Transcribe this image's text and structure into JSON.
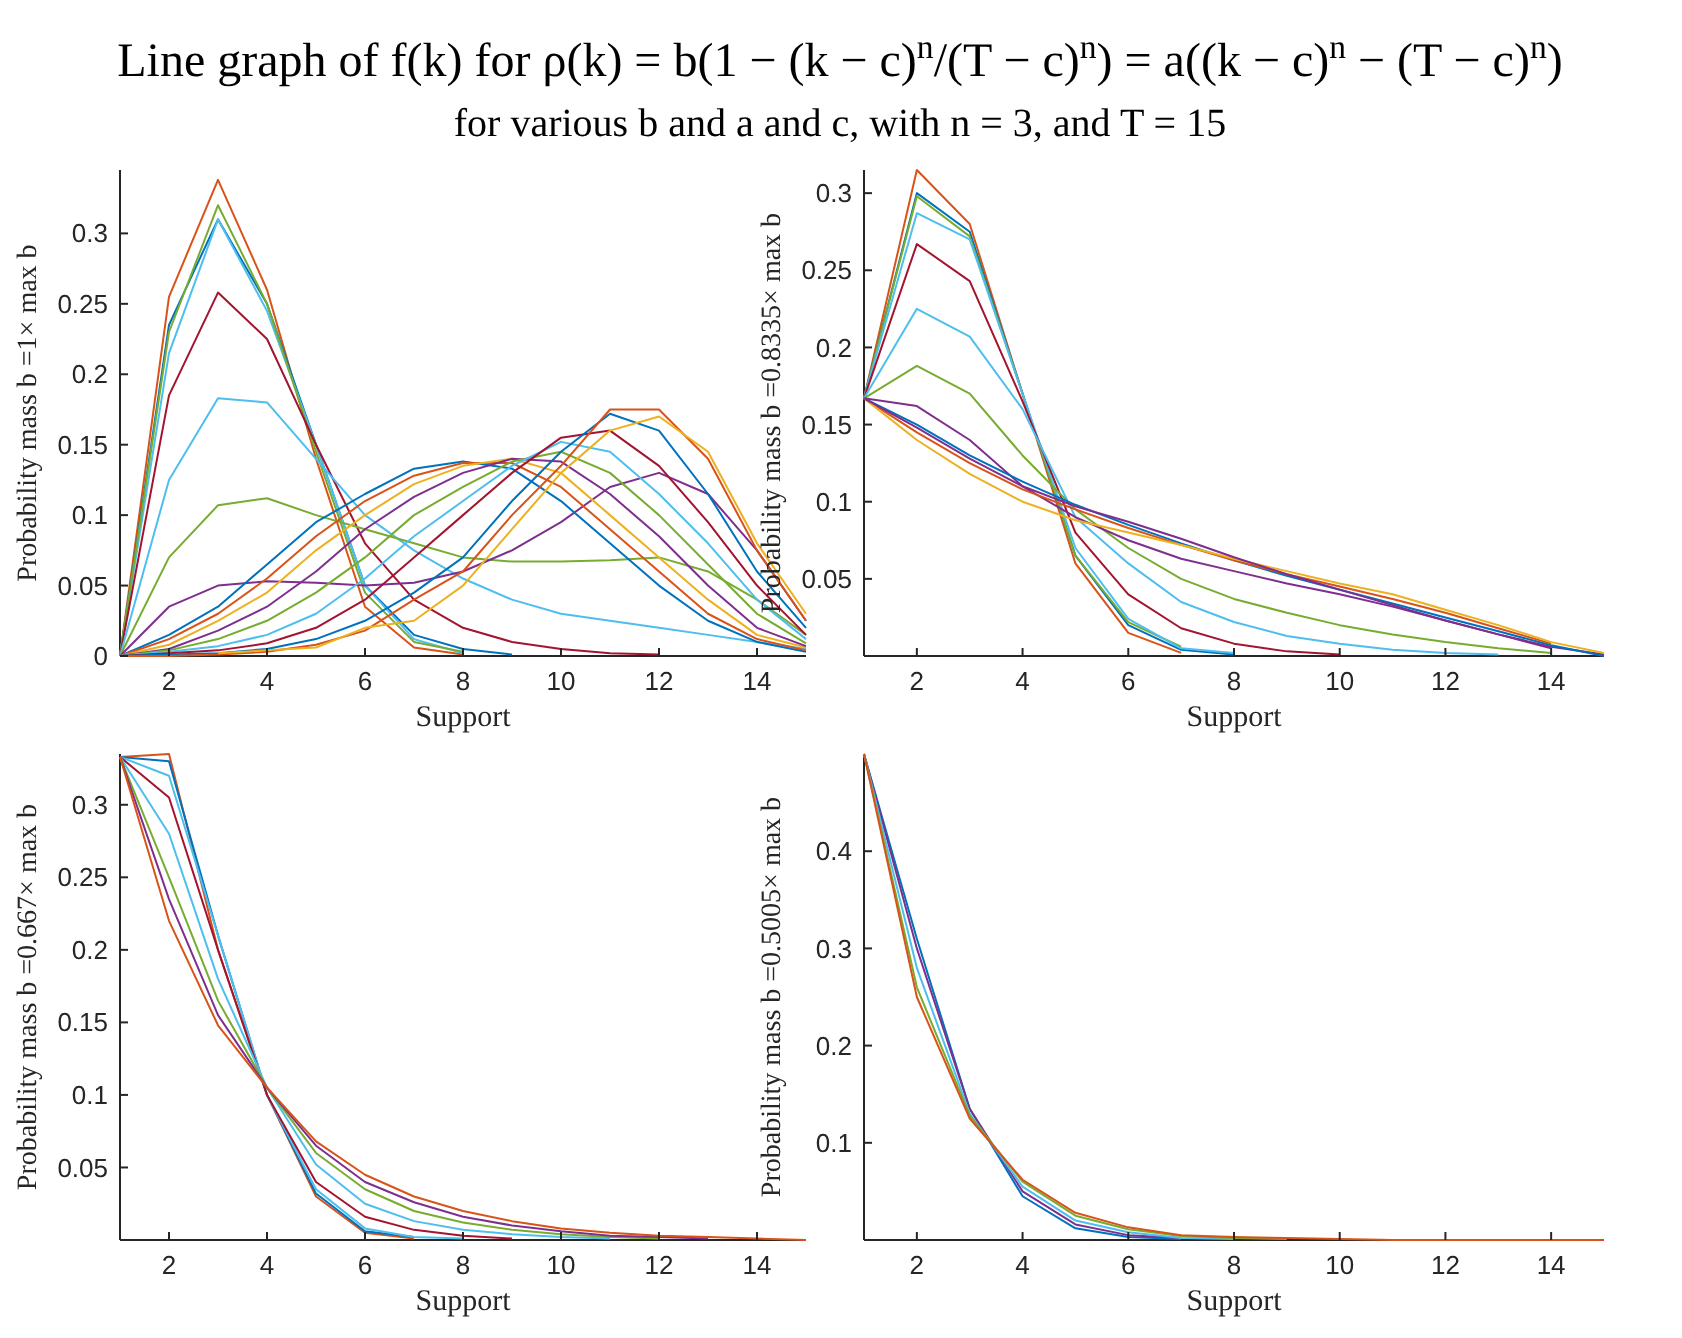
{
  "chart_data": [
    {
      "type": "line",
      "title": "Line graph of f(k) for ρ(k) = b(1 − (k − c)$^{n}$/(T − c)$^{n}$) = a((k − c)$^{n}$ − (T − c)$^{n}$)",
      "subtitle": "for various b and a and c, with n = 3, and T = 15",
      "xlabel": "Support",
      "ylabel": "Probability mass b =1× max b",
      "x": [
        1,
        2,
        3,
        4,
        5,
        6,
        7,
        8,
        9,
        10,
        11,
        12,
        13,
        14,
        15
      ],
      "xlim": [
        1,
        15
      ],
      "xticks": [
        2,
        4,
        6,
        8,
        10,
        12,
        14
      ],
      "ylim": [
        0,
        0.345
      ],
      "yticks": [
        0,
        0.05,
        0.1,
        0.15,
        0.2,
        0.25,
        0.3
      ],
      "series": [
        {
          "color": "#d95319",
          "values": [
            0,
            0.255,
            0.338,
            0.26,
            0.14,
            0.035,
            0.006,
            0.001,
            null,
            null,
            null,
            null,
            null,
            null,
            null
          ]
        },
        {
          "color": "#0072bd",
          "values": [
            0,
            0.235,
            0.31,
            0.25,
            0.15,
            0.05,
            0.015,
            0.005,
            0.001,
            null,
            null,
            null,
            null,
            null,
            null
          ]
        },
        {
          "color": "#4dbeee",
          "values": [
            0,
            0.215,
            0.31,
            0.245,
            0.15,
            0.05,
            0.012,
            0.002,
            null,
            null,
            null,
            null,
            null,
            null,
            null
          ]
        },
        {
          "color": "#77ac30",
          "values": [
            0,
            0.23,
            0.32,
            0.25,
            0.145,
            0.045,
            0.01,
            0.003,
            null,
            null,
            null,
            null,
            null,
            null,
            null
          ]
        },
        {
          "color": "#a2142f",
          "values": [
            0,
            0.185,
            0.258,
            0.225,
            0.15,
            0.08,
            0.04,
            0.02,
            0.01,
            0.005,
            0.002,
            0.001,
            null,
            null,
            null
          ]
        },
        {
          "color": "#4dbeee",
          "values": [
            0,
            0.125,
            0.183,
            0.18,
            0.14,
            0.1,
            0.075,
            0.055,
            0.04,
            0.03,
            0.025,
            0.02,
            0.015,
            0.01,
            0.005
          ]
        },
        {
          "color": "#77ac30",
          "values": [
            0,
            0.07,
            0.107,
            0.112,
            0.1,
            0.09,
            0.08,
            0.07,
            0.067,
            0.067,
            0.068,
            0.07,
            0.06,
            0.04,
            0.015
          ]
        },
        {
          "color": "#7e2f8e",
          "values": [
            0,
            0.035,
            0.05,
            0.053,
            0.052,
            0.05,
            0.052,
            0.06,
            0.075,
            0.095,
            0.12,
            0.13,
            0.115,
            0.075,
            0.025
          ]
        },
        {
          "color": "#0072bd",
          "values": [
            0,
            0.015,
            0.035,
            0.065,
            0.095,
            0.115,
            0.133,
            0.138,
            0.133,
            0.11,
            0.08,
            0.05,
            0.025,
            0.01,
            0.003
          ]
        },
        {
          "color": "#d95319",
          "values": [
            0,
            0.012,
            0.03,
            0.055,
            0.085,
            0.11,
            0.128,
            0.137,
            0.137,
            0.12,
            0.09,
            0.06,
            0.03,
            0.012,
            0.004
          ]
        },
        {
          "color": "#edb120",
          "values": [
            0,
            0.008,
            0.025,
            0.045,
            0.075,
            0.1,
            0.122,
            0.135,
            0.14,
            0.13,
            0.1,
            0.07,
            0.04,
            0.015,
            0.006
          ]
        },
        {
          "color": "#7e2f8e",
          "values": [
            0,
            0.005,
            0.018,
            0.035,
            0.06,
            0.09,
            0.113,
            0.13,
            0.14,
            0.138,
            0.115,
            0.085,
            0.05,
            0.02,
            0.007
          ]
        },
        {
          "color": "#77ac30",
          "values": [
            0,
            0.004,
            0.012,
            0.025,
            0.045,
            0.07,
            0.1,
            0.12,
            0.138,
            0.145,
            0.13,
            0.1,
            0.065,
            0.03,
            0.009
          ]
        },
        {
          "color": "#4dbeee",
          "values": [
            0,
            0.003,
            0.007,
            0.015,
            0.03,
            0.055,
            0.085,
            0.11,
            0.135,
            0.152,
            0.145,
            0.115,
            0.08,
            0.04,
            0.012
          ]
        },
        {
          "color": "#a2142f",
          "values": [
            0,
            0.002,
            0.004,
            0.009,
            0.02,
            0.04,
            0.07,
            0.1,
            0.13,
            0.155,
            0.16,
            0.135,
            0.095,
            0.05,
            0.015
          ]
        },
        {
          "color": "#0072bd",
          "values": [
            0,
            0.001,
            0.002,
            0.005,
            0.012,
            0.025,
            0.045,
            0.07,
            0.11,
            0.145,
            0.172,
            0.16,
            0.115,
            0.06,
            0.02
          ]
        },
        {
          "color": "#d95319",
          "values": [
            0,
            0,
            0.001,
            0.003,
            0.008,
            0.018,
            0.04,
            0.06,
            0.1,
            0.135,
            0.175,
            0.175,
            0.14,
            0.075,
            0.025
          ]
        },
        {
          "color": "#edb120",
          "values": [
            null,
            null,
            0.002,
            0.004,
            0.006,
            0.02,
            0.025,
            0.05,
            0.09,
            0.13,
            0.16,
            0.17,
            0.145,
            0.08,
            0.03
          ]
        }
      ]
    },
    {
      "type": "line",
      "xlabel": "Support",
      "ylabel": "Probability mass b =0.8335× max b",
      "x": [
        1,
        2,
        3,
        4,
        5,
        6,
        7,
        8,
        9,
        10,
        11,
        12,
        13,
        14,
        15
      ],
      "xlim": [
        1,
        15
      ],
      "xticks": [
        2,
        4,
        6,
        8,
        10,
        12,
        14
      ],
      "ylim": [
        0,
        0.315
      ],
      "yticks": [
        0.05,
        0.1,
        0.15,
        0.2,
        0.25,
        0.3
      ],
      "series": [
        {
          "color": "#d95319",
          "values": [
            0.167,
            0.315,
            0.28,
            0.17,
            0.06,
            0.015,
            0.002,
            null,
            null,
            null,
            null,
            null,
            null,
            null,
            null
          ]
        },
        {
          "color": "#0072bd",
          "values": [
            0.167,
            0.3,
            0.275,
            0.17,
            0.065,
            0.02,
            0.004,
            0.001,
            null,
            null,
            null,
            null,
            null,
            null,
            null
          ]
        },
        {
          "color": "#77ac30",
          "values": [
            0.167,
            0.298,
            0.272,
            0.17,
            0.065,
            0.022,
            0.006,
            null,
            null,
            null,
            null,
            null,
            null,
            null,
            null
          ]
        },
        {
          "color": "#4dbeee",
          "values": [
            0.167,
            0.287,
            0.27,
            0.17,
            0.07,
            0.024,
            0.005,
            0.002,
            null,
            null,
            null,
            null,
            null,
            null,
            null
          ]
        },
        {
          "color": "#a2142f",
          "values": [
            0.167,
            0.267,
            0.243,
            0.165,
            0.08,
            0.04,
            0.018,
            0.008,
            0.003,
            0.001,
            null,
            null,
            null,
            null,
            null
          ]
        },
        {
          "color": "#4dbeee",
          "values": [
            0.167,
            0.225,
            0.207,
            0.16,
            0.09,
            0.06,
            0.035,
            0.022,
            0.013,
            0.008,
            0.004,
            0.002,
            0.001,
            null,
            null
          ]
        },
        {
          "color": "#77ac30",
          "values": [
            0.167,
            0.188,
            0.17,
            0.13,
            0.095,
            0.07,
            0.05,
            0.037,
            0.028,
            0.02,
            0.014,
            0.009,
            0.005,
            0.002,
            null
          ]
        },
        {
          "color": "#7e2f8e",
          "values": [
            0.167,
            0.162,
            0.14,
            0.11,
            0.09,
            0.075,
            0.063,
            0.055,
            0.047,
            0.04,
            0.032,
            0.023,
            0.014,
            0.006,
            0.001
          ]
        },
        {
          "color": "#0072bd",
          "values": [
            0.167,
            0.15,
            0.13,
            0.113,
            0.098,
            0.085,
            0.073,
            0.062,
            0.052,
            0.043,
            0.034,
            0.025,
            0.016,
            0.007,
            0
          ]
        },
        {
          "color": "#d95319",
          "values": [
            0.167,
            0.145,
            0.125,
            0.108,
            0.095,
            0.083,
            0.072,
            0.062,
            0.053,
            0.045,
            0.037,
            0.028,
            0.018,
            0.008,
            null
          ]
        },
        {
          "color": "#edb120",
          "values": [
            0.167,
            0.14,
            0.118,
            0.1,
            0.088,
            0.08,
            0.072,
            0.063,
            0.055,
            0.047,
            0.04,
            0.03,
            0.02,
            0.009,
            0.002
          ]
        },
        {
          "color": "#7e2f8e",
          "values": [
            0.167,
            0.148,
            0.128,
            0.11,
            0.097,
            0.087,
            0.076,
            0.064,
            0.053,
            0.043,
            0.033,
            0.023,
            0.014,
            0.005,
            null
          ]
        }
      ]
    },
    {
      "type": "line",
      "xlabel": "Support",
      "ylabel": "Probability mass b =0.667× max b",
      "x": [
        1,
        2,
        3,
        4,
        5,
        6,
        7,
        8,
        9,
        10,
        11,
        12,
        13,
        14,
        15
      ],
      "xlim": [
        1,
        15
      ],
      "xticks": [
        2,
        4,
        6,
        8,
        10,
        12,
        14
      ],
      "ylim": [
        0,
        0.335
      ],
      "yticks": [
        0.05,
        0.1,
        0.15,
        0.2,
        0.25,
        0.3
      ],
      "series": [
        {
          "color": "#d95319",
          "values": [
            0.333,
            0.335,
            0.2,
            0.1,
            0.03,
            0.005,
            0.001,
            null,
            null,
            null,
            null,
            null,
            null,
            null,
            null
          ]
        },
        {
          "color": "#0072bd",
          "values": [
            0.333,
            0.33,
            0.21,
            0.1,
            0.032,
            0.006,
            0.002,
            null,
            null,
            null,
            null,
            null,
            null,
            null,
            null
          ]
        },
        {
          "color": "#4dbeee",
          "values": [
            0.333,
            0.32,
            0.21,
            0.1,
            0.035,
            0.008,
            0.002,
            0.001,
            null,
            null,
            null,
            null,
            null,
            null,
            null
          ]
        },
        {
          "color": "#a2142f",
          "values": [
            0.333,
            0.305,
            0.2,
            0.1,
            0.04,
            0.016,
            0.007,
            0.003,
            0.001,
            null,
            null,
            null,
            null,
            null,
            null
          ]
        },
        {
          "color": "#4dbeee",
          "values": [
            0.333,
            0.28,
            0.18,
            0.105,
            0.052,
            0.025,
            0.013,
            0.007,
            0.004,
            0.002,
            0.001,
            null,
            null,
            null,
            null
          ]
        },
        {
          "color": "#77ac30",
          "values": [
            0.333,
            0.25,
            0.165,
            0.105,
            0.06,
            0.035,
            0.02,
            0.012,
            0.007,
            0.004,
            0.002,
            0.001,
            null,
            null,
            null
          ]
        },
        {
          "color": "#7e2f8e",
          "values": [
            0.333,
            0.235,
            0.155,
            0.105,
            0.065,
            0.04,
            0.026,
            0.016,
            0.01,
            0.006,
            0.003,
            0.002,
            0.001,
            null,
            null
          ]
        },
        {
          "color": "#d95319",
          "values": [
            0.333,
            0.22,
            0.148,
            0.105,
            0.068,
            0.045,
            0.03,
            0.02,
            0.013,
            0.008,
            0.005,
            0.003,
            0.002,
            0.001,
            0
          ]
        }
      ]
    },
    {
      "type": "line",
      "xlabel": "Support",
      "ylabel": "Probability mass b =0.5005× max b",
      "x": [
        1,
        2,
        3,
        4,
        5,
        6,
        7,
        8,
        9,
        10,
        11,
        12,
        13,
        14,
        15
      ],
      "xlim": [
        1,
        15
      ],
      "xticks": [
        2,
        4,
        6,
        8,
        10,
        12,
        14
      ],
      "ylim": [
        0,
        0.5
      ],
      "yticks": [
        0.1,
        0.2,
        0.3,
        0.4
      ],
      "series": [
        {
          "color": "#0072bd",
          "values": [
            0.5,
            0.31,
            0.135,
            0.045,
            0.012,
            0.003,
            0.001,
            null,
            null,
            null,
            null,
            null,
            null,
            null,
            null
          ]
        },
        {
          "color": "#7e2f8e",
          "values": [
            0.5,
            0.3,
            0.135,
            0.05,
            0.016,
            0.005,
            0.002,
            null,
            null,
            null,
            null,
            null,
            null,
            null,
            null
          ]
        },
        {
          "color": "#4dbeee",
          "values": [
            0.5,
            0.28,
            0.13,
            0.055,
            0.02,
            0.008,
            0.002,
            0.001,
            null,
            null,
            null,
            null,
            null,
            null,
            null
          ]
        },
        {
          "color": "#77ac30",
          "values": [
            0.5,
            0.26,
            0.128,
            0.06,
            0.025,
            0.011,
            0.004,
            0.002,
            0.001,
            null,
            null,
            null,
            null,
            null,
            null
          ]
        },
        {
          "color": "#d95319",
          "values": [
            0.5,
            0.25,
            0.125,
            0.062,
            0.028,
            0.013,
            0.005,
            0.003,
            0.002,
            0.001,
            0,
            0,
            0,
            0,
            0
          ]
        }
      ]
    }
  ]
}
